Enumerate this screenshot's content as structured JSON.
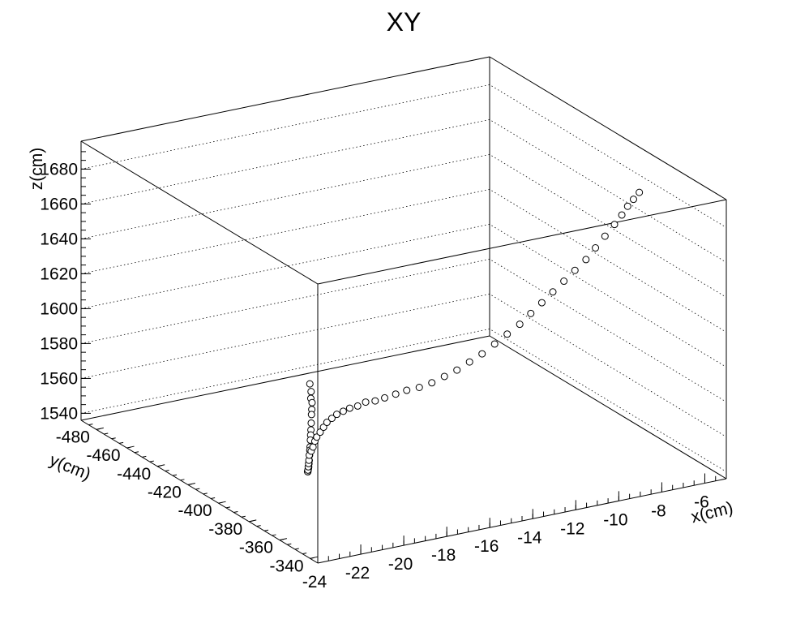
{
  "chart_data": {
    "type": "scatter3d",
    "title": "XY",
    "xlabel": "x(cm)",
    "ylabel": "y(cm)",
    "zlabel": "z(cm)",
    "xlim": [
      -24,
      -5
    ],
    "ylim": [
      -490,
      -335
    ],
    "zlim": [
      1536,
      1696
    ],
    "x_ticks": [
      -24,
      -22,
      -20,
      -18,
      -16,
      -14,
      -12,
      -10,
      -8,
      -6
    ],
    "y_ticks": [
      -340,
      -360,
      -380,
      -400,
      -420,
      -440,
      -460,
      -480
    ],
    "z_ticks": [
      1540,
      1560,
      1580,
      1600,
      1620,
      1640,
      1660,
      1680
    ],
    "grid": true,
    "points": [
      {
        "x": -23.8,
        "y": -343,
        "z": 1634
      },
      {
        "x": -23.6,
        "y": -345,
        "z": 1628
      },
      {
        "x": -23.4,
        "y": -348,
        "z": 1622
      },
      {
        "x": -23.2,
        "y": -350,
        "z": 1618
      },
      {
        "x": -23.0,
        "y": -353,
        "z": 1612
      },
      {
        "x": -22.8,
        "y": -356,
        "z": 1607
      },
      {
        "x": -22.6,
        "y": -359,
        "z": 1600
      },
      {
        "x": -22.4,
        "y": -362,
        "z": 1594
      },
      {
        "x": -22.2,
        "y": -365,
        "z": 1589
      },
      {
        "x": -22.0,
        "y": -368,
        "z": 1584
      },
      {
        "x": -21.8,
        "y": -371,
        "z": 1578
      },
      {
        "x": -21.6,
        "y": -374,
        "z": 1574
      },
      {
        "x": -21.4,
        "y": -377,
        "z": 1569
      },
      {
        "x": -21.2,
        "y": -380,
        "z": 1564
      },
      {
        "x": -21.0,
        "y": -383,
        "z": 1560
      },
      {
        "x": -20.8,
        "y": -386,
        "z": 1556
      },
      {
        "x": -20.6,
        "y": -389,
        "z": 1553
      },
      {
        "x": -20.4,
        "y": -392,
        "z": 1550
      },
      {
        "x": -20.2,
        "y": -395,
        "z": 1547
      },
      {
        "x": -20.0,
        "y": -398,
        "z": 1545
      },
      {
        "x": -19.7,
        "y": -402,
        "z": 1543
      },
      {
        "x": -19.4,
        "y": -406,
        "z": 1542
      },
      {
        "x": -19.1,
        "y": -410,
        "z": 1541
      },
      {
        "x": -18.8,
        "y": -414,
        "z": 1540
      },
      {
        "x": -18.5,
        "y": -418,
        "z": 1540
      },
      {
        "x": -18.2,
        "y": -421,
        "z": 1540
      },
      {
        "x": -17.9,
        "y": -424,
        "z": 1540
      },
      {
        "x": -17.6,
        "y": -427,
        "z": 1541
      },
      {
        "x": -17.3,
        "y": -430,
        "z": 1541
      },
      {
        "x": -17.0,
        "y": -432,
        "z": 1542
      },
      {
        "x": -16.7,
        "y": -434,
        "z": 1543
      },
      {
        "x": -16.4,
        "y": -436,
        "z": 1544
      },
      {
        "x": -16.1,
        "y": -437,
        "z": 1545
      },
      {
        "x": -15.8,
        "y": -438,
        "z": 1546
      },
      {
        "x": -15.5,
        "y": -438,
        "z": 1547
      },
      {
        "x": -15.2,
        "y": -438,
        "z": 1548
      },
      {
        "x": -14.9,
        "y": -437,
        "z": 1549
      },
      {
        "x": -14.6,
        "y": -436,
        "z": 1551
      },
      {
        "x": -14.3,
        "y": -434,
        "z": 1552
      },
      {
        "x": -14.0,
        "y": -432,
        "z": 1554
      },
      {
        "x": -13.7,
        "y": -429,
        "z": 1557
      },
      {
        "x": -13.4,
        "y": -426,
        "z": 1560
      },
      {
        "x": -13.1,
        "y": -422,
        "z": 1563
      },
      {
        "x": -12.8,
        "y": -418,
        "z": 1567
      },
      {
        "x": -12.5,
        "y": -414,
        "z": 1572
      },
      {
        "x": -12.2,
        "y": -410,
        "z": 1577
      },
      {
        "x": -11.9,
        "y": -406,
        "z": 1583
      },
      {
        "x": -11.6,
        "y": -402,
        "z": 1589
      },
      {
        "x": -11.3,
        "y": -398,
        "z": 1596
      },
      {
        "x": -11.0,
        "y": -394,
        "z": 1603
      },
      {
        "x": -10.7,
        "y": -390,
        "z": 1610
      },
      {
        "x": -10.4,
        "y": -387,
        "z": 1617
      },
      {
        "x": -10.1,
        "y": -384,
        "z": 1624
      },
      {
        "x": -9.8,
        "y": -381,
        "z": 1631
      },
      {
        "x": -9.5,
        "y": -378,
        "z": 1638
      },
      {
        "x": -9.2,
        "y": -375,
        "z": 1645
      },
      {
        "x": -8.9,
        "y": -372,
        "z": 1652
      },
      {
        "x": -8.6,
        "y": -370,
        "z": 1659
      },
      {
        "x": -8.3,
        "y": -368,
        "z": 1666
      },
      {
        "x": -8.0,
        "y": -366,
        "z": 1673
      },
      {
        "x": -7.8,
        "y": -364,
        "z": 1679
      },
      {
        "x": -7.6,
        "y": -363,
        "z": 1684
      },
      {
        "x": -7.4,
        "y": -362,
        "z": 1688
      },
      {
        "x": -7.2,
        "y": -361,
        "z": 1692
      }
    ]
  }
}
